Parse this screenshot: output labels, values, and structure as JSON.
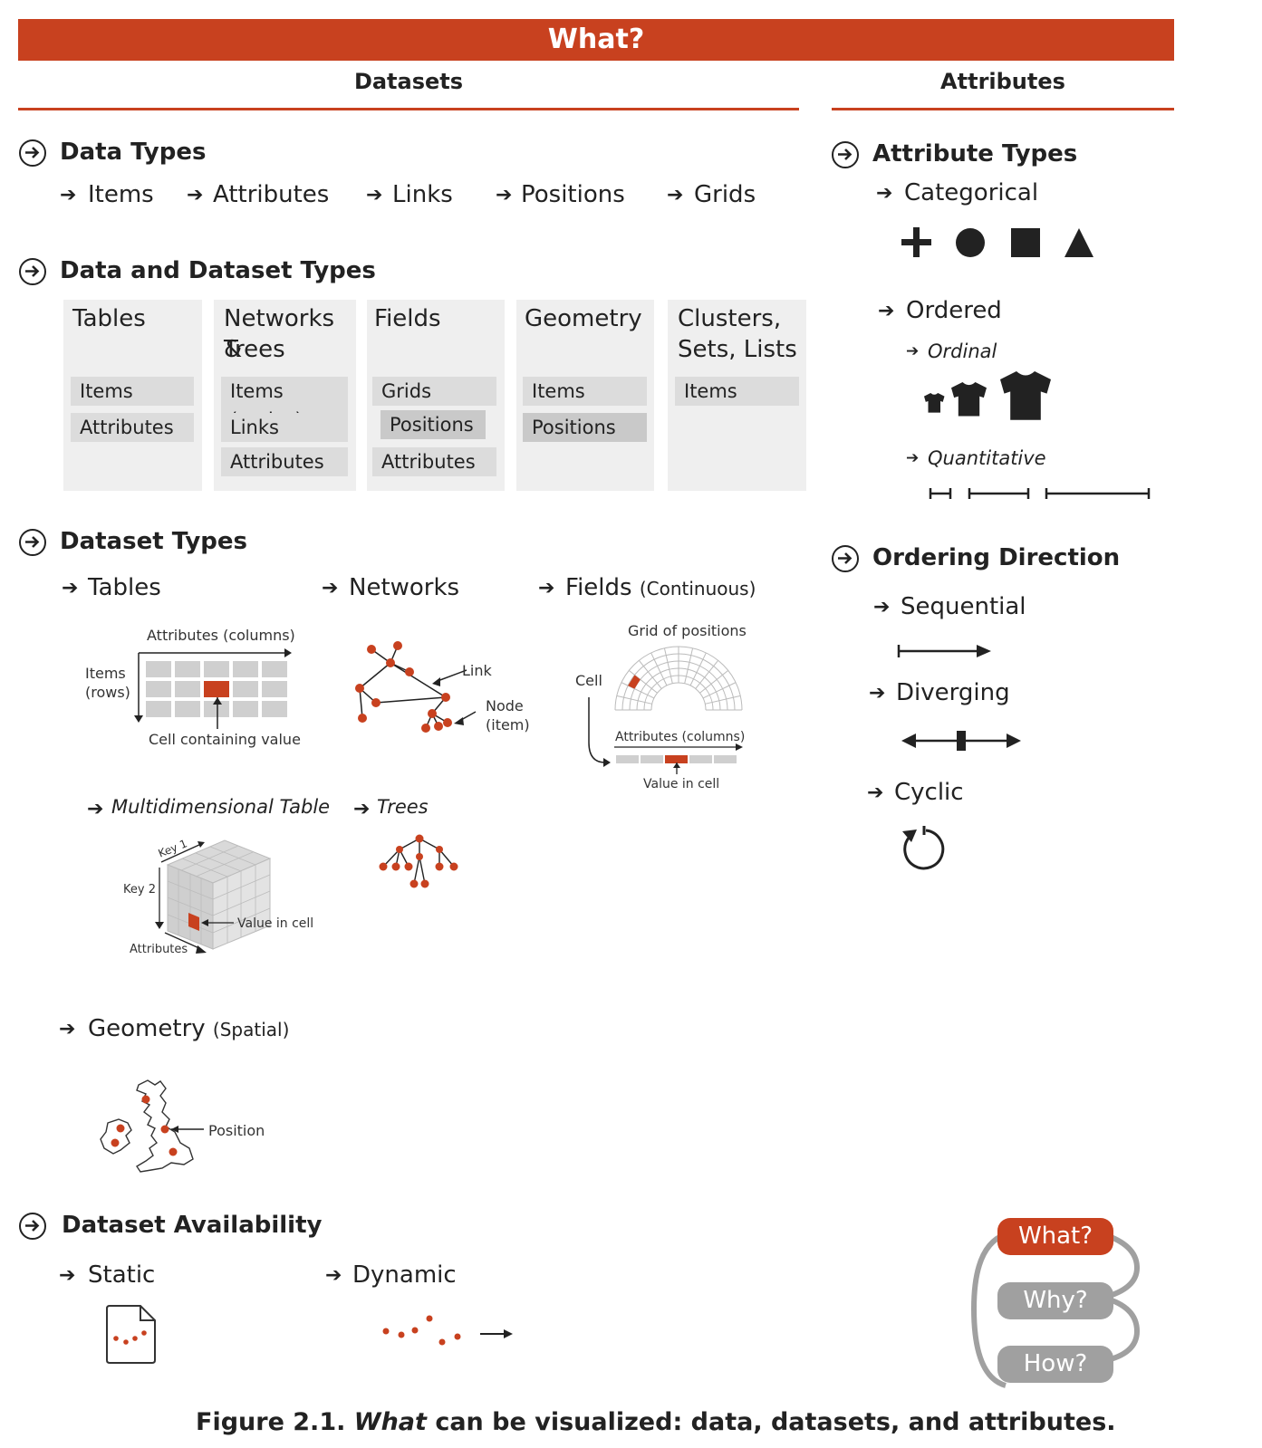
{
  "banner": {
    "title": "What?"
  },
  "headers": {
    "datasets": "Datasets",
    "attributes": "Attributes"
  },
  "data_types": {
    "title": "Data Types",
    "items": [
      "Items",
      "Attributes",
      "Links",
      "Positions",
      "Grids"
    ]
  },
  "data_and_dataset_types": {
    "title": "Data and Dataset Types",
    "columns": [
      {
        "title_l1": "Tables",
        "title_l2": "",
        "items": [
          "Items",
          "Attributes"
        ]
      },
      {
        "title_l1": "Networks &",
        "title_l2": "Trees",
        "items": [
          "Items (nodes)",
          "Links",
          "Attributes"
        ]
      },
      {
        "title_l1": "Fields",
        "title_l2": "",
        "items": [
          "Grids",
          "Positions",
          "Attributes"
        ]
      },
      {
        "title_l1": "Geometry",
        "title_l2": "",
        "items": [
          "Items",
          "Positions"
        ]
      },
      {
        "title_l1": "Clusters,",
        "title_l2": "Sets, Lists",
        "items": [
          "Items"
        ]
      }
    ]
  },
  "dataset_types": {
    "title": "Dataset Types",
    "tables": {
      "label": "Tables",
      "attributes_columns": "Attributes (columns)",
      "items_rows_l1": "Items",
      "items_rows_l2": "(rows)",
      "cell_containing_value": "Cell containing value"
    },
    "networks": {
      "label": "Networks",
      "link": "Link",
      "node_l1": "Node",
      "node_l2": "(item)"
    },
    "fields": {
      "label": "Fields",
      "qualifier": "(Continuous)",
      "grid_of_positions": "Grid of positions",
      "cell": "Cell",
      "attributes_columns": "Attributes (columns)",
      "value_in_cell": "Value in cell"
    },
    "multidimensional": {
      "label": "Multidimensional Table",
      "key1": "Key 1",
      "key2": "Key 2",
      "attributes": "Attributes",
      "value_in_cell": "Value in cell"
    },
    "trees": {
      "label": "Trees"
    },
    "geometry": {
      "label": "Geometry",
      "qualifier": "(Spatial)",
      "position": "Position"
    }
  },
  "dataset_availability": {
    "title": "Dataset Availability",
    "static": "Static",
    "dynamic": "Dynamic"
  },
  "attribute_types": {
    "title": "Attribute Types",
    "categorical": "Categorical",
    "ordered": "Ordered",
    "ordinal": "Ordinal",
    "quantitative": "Quantitative",
    "categorical_icons": [
      "plus-icon",
      "circle-icon",
      "square-icon",
      "triangle-icon"
    ]
  },
  "ordering_direction": {
    "title": "Ordering Direction",
    "sequential": "Sequential",
    "diverging": "Diverging",
    "cyclic": "Cyclic"
  },
  "nav_loop": {
    "what": "What?",
    "why": "Why?",
    "how": "How?"
  },
  "caption": {
    "prefix": "Figure 2.1.",
    "emph": "What",
    "rest": "can be visualized: data, datasets, and attributes."
  },
  "colors": {
    "accent": "#c8411f",
    "card": "#efefef",
    "pill": "#dcdcdc",
    "pill_dark": "#c9c9c9",
    "dot": "#c8411f"
  }
}
